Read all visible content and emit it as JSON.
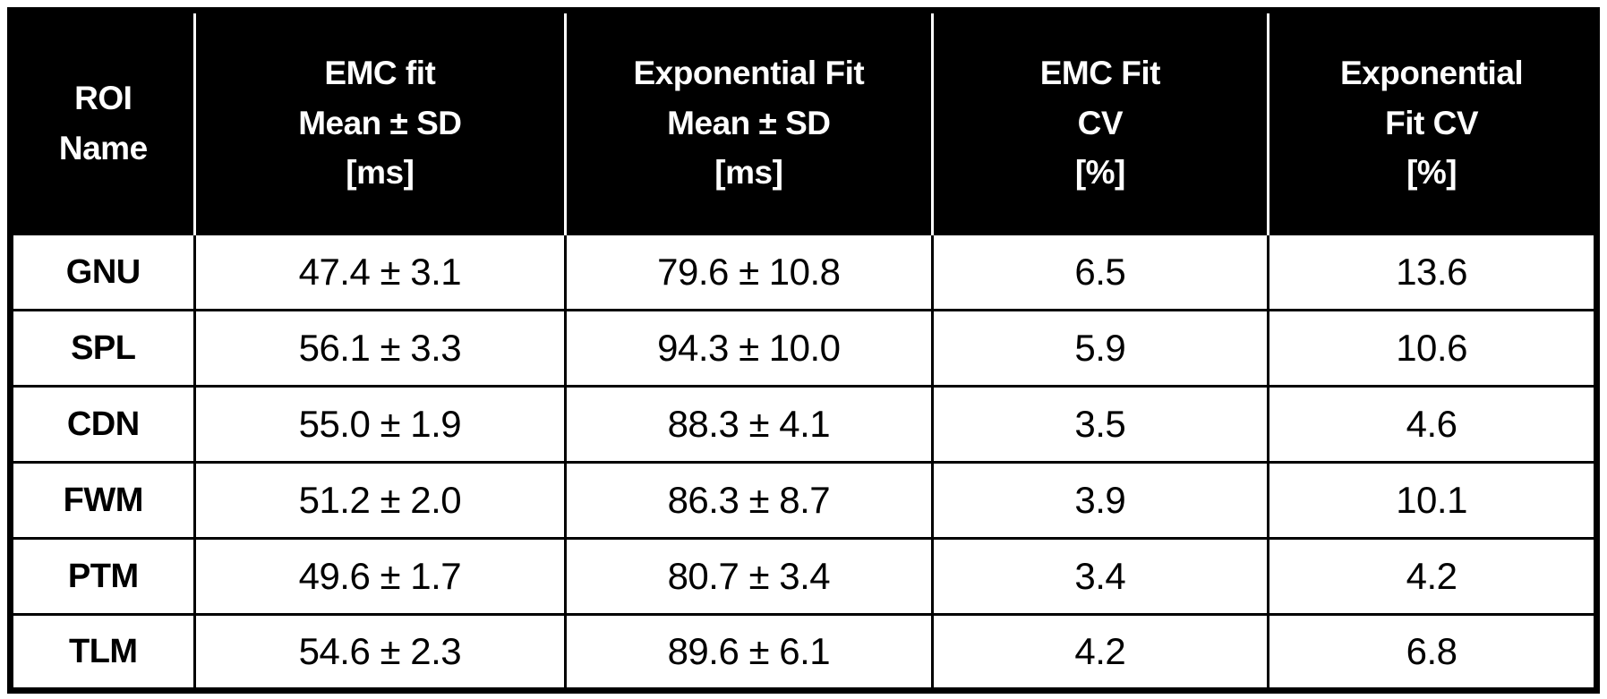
{
  "colors": {
    "header_bg": "#000000",
    "header_text": "#ffffff",
    "body_bg": "#ffffff",
    "body_text": "#000000",
    "border": "#000000"
  },
  "table": {
    "headers": [
      "ROI\nName",
      "EMC fit\nMean ± SD\n[ms]",
      "Exponential Fit\nMean ± SD\n[ms]",
      "EMC Fit\nCV\n[%]",
      "Exponential\nFit CV\n[%]"
    ]
  },
  "chart_data": {
    "type": "table",
    "columns": [
      "ROI Name",
      "EMC fit Mean ± SD [ms]",
      "Exponential Fit Mean ± SD [ms]",
      "EMC Fit CV [%]",
      "Exponential Fit CV [%]"
    ],
    "rows": [
      [
        "GNU",
        "47.4 ± 3.1",
        "79.6 ± 10.8",
        "6.5",
        "13.6"
      ],
      [
        "SPL",
        "56.1 ± 3.3",
        "94.3 ± 10.0",
        "5.9",
        "10.6"
      ],
      [
        "CDN",
        "55.0 ± 1.9",
        "88.3 ± 4.1",
        "3.5",
        "4.6"
      ],
      [
        "FWM",
        "51.2 ± 2.0",
        "86.3 ± 8.7",
        "3.9",
        "10.1"
      ],
      [
        "PTM",
        "49.6 ± 1.7",
        "80.7 ± 3.4",
        "3.4",
        "4.2"
      ],
      [
        "TLM",
        "54.6 ± 2.3",
        "89.6 ± 6.1",
        "4.2",
        "6.8"
      ]
    ],
    "numeric": {
      "roi_names": [
        "GNU",
        "SPL",
        "CDN",
        "FWM",
        "PTM",
        "TLM"
      ],
      "emc_fit_mean_ms": [
        47.4,
        56.1,
        55.0,
        51.2,
        49.6,
        54.6
      ],
      "emc_fit_sd_ms": [
        3.1,
        3.3,
        1.9,
        2.0,
        1.7,
        2.3
      ],
      "exponential_fit_mean_ms": [
        79.6,
        94.3,
        88.3,
        86.3,
        80.7,
        89.6
      ],
      "exponential_fit_sd_ms": [
        10.8,
        10.0,
        4.1,
        8.7,
        3.4,
        6.1
      ],
      "emc_fit_cv_pct": [
        6.5,
        5.9,
        3.5,
        3.9,
        3.4,
        4.2
      ],
      "exponential_fit_cv_pct": [
        13.6,
        10.6,
        4.6,
        10.1,
        4.2,
        6.8
      ]
    }
  }
}
